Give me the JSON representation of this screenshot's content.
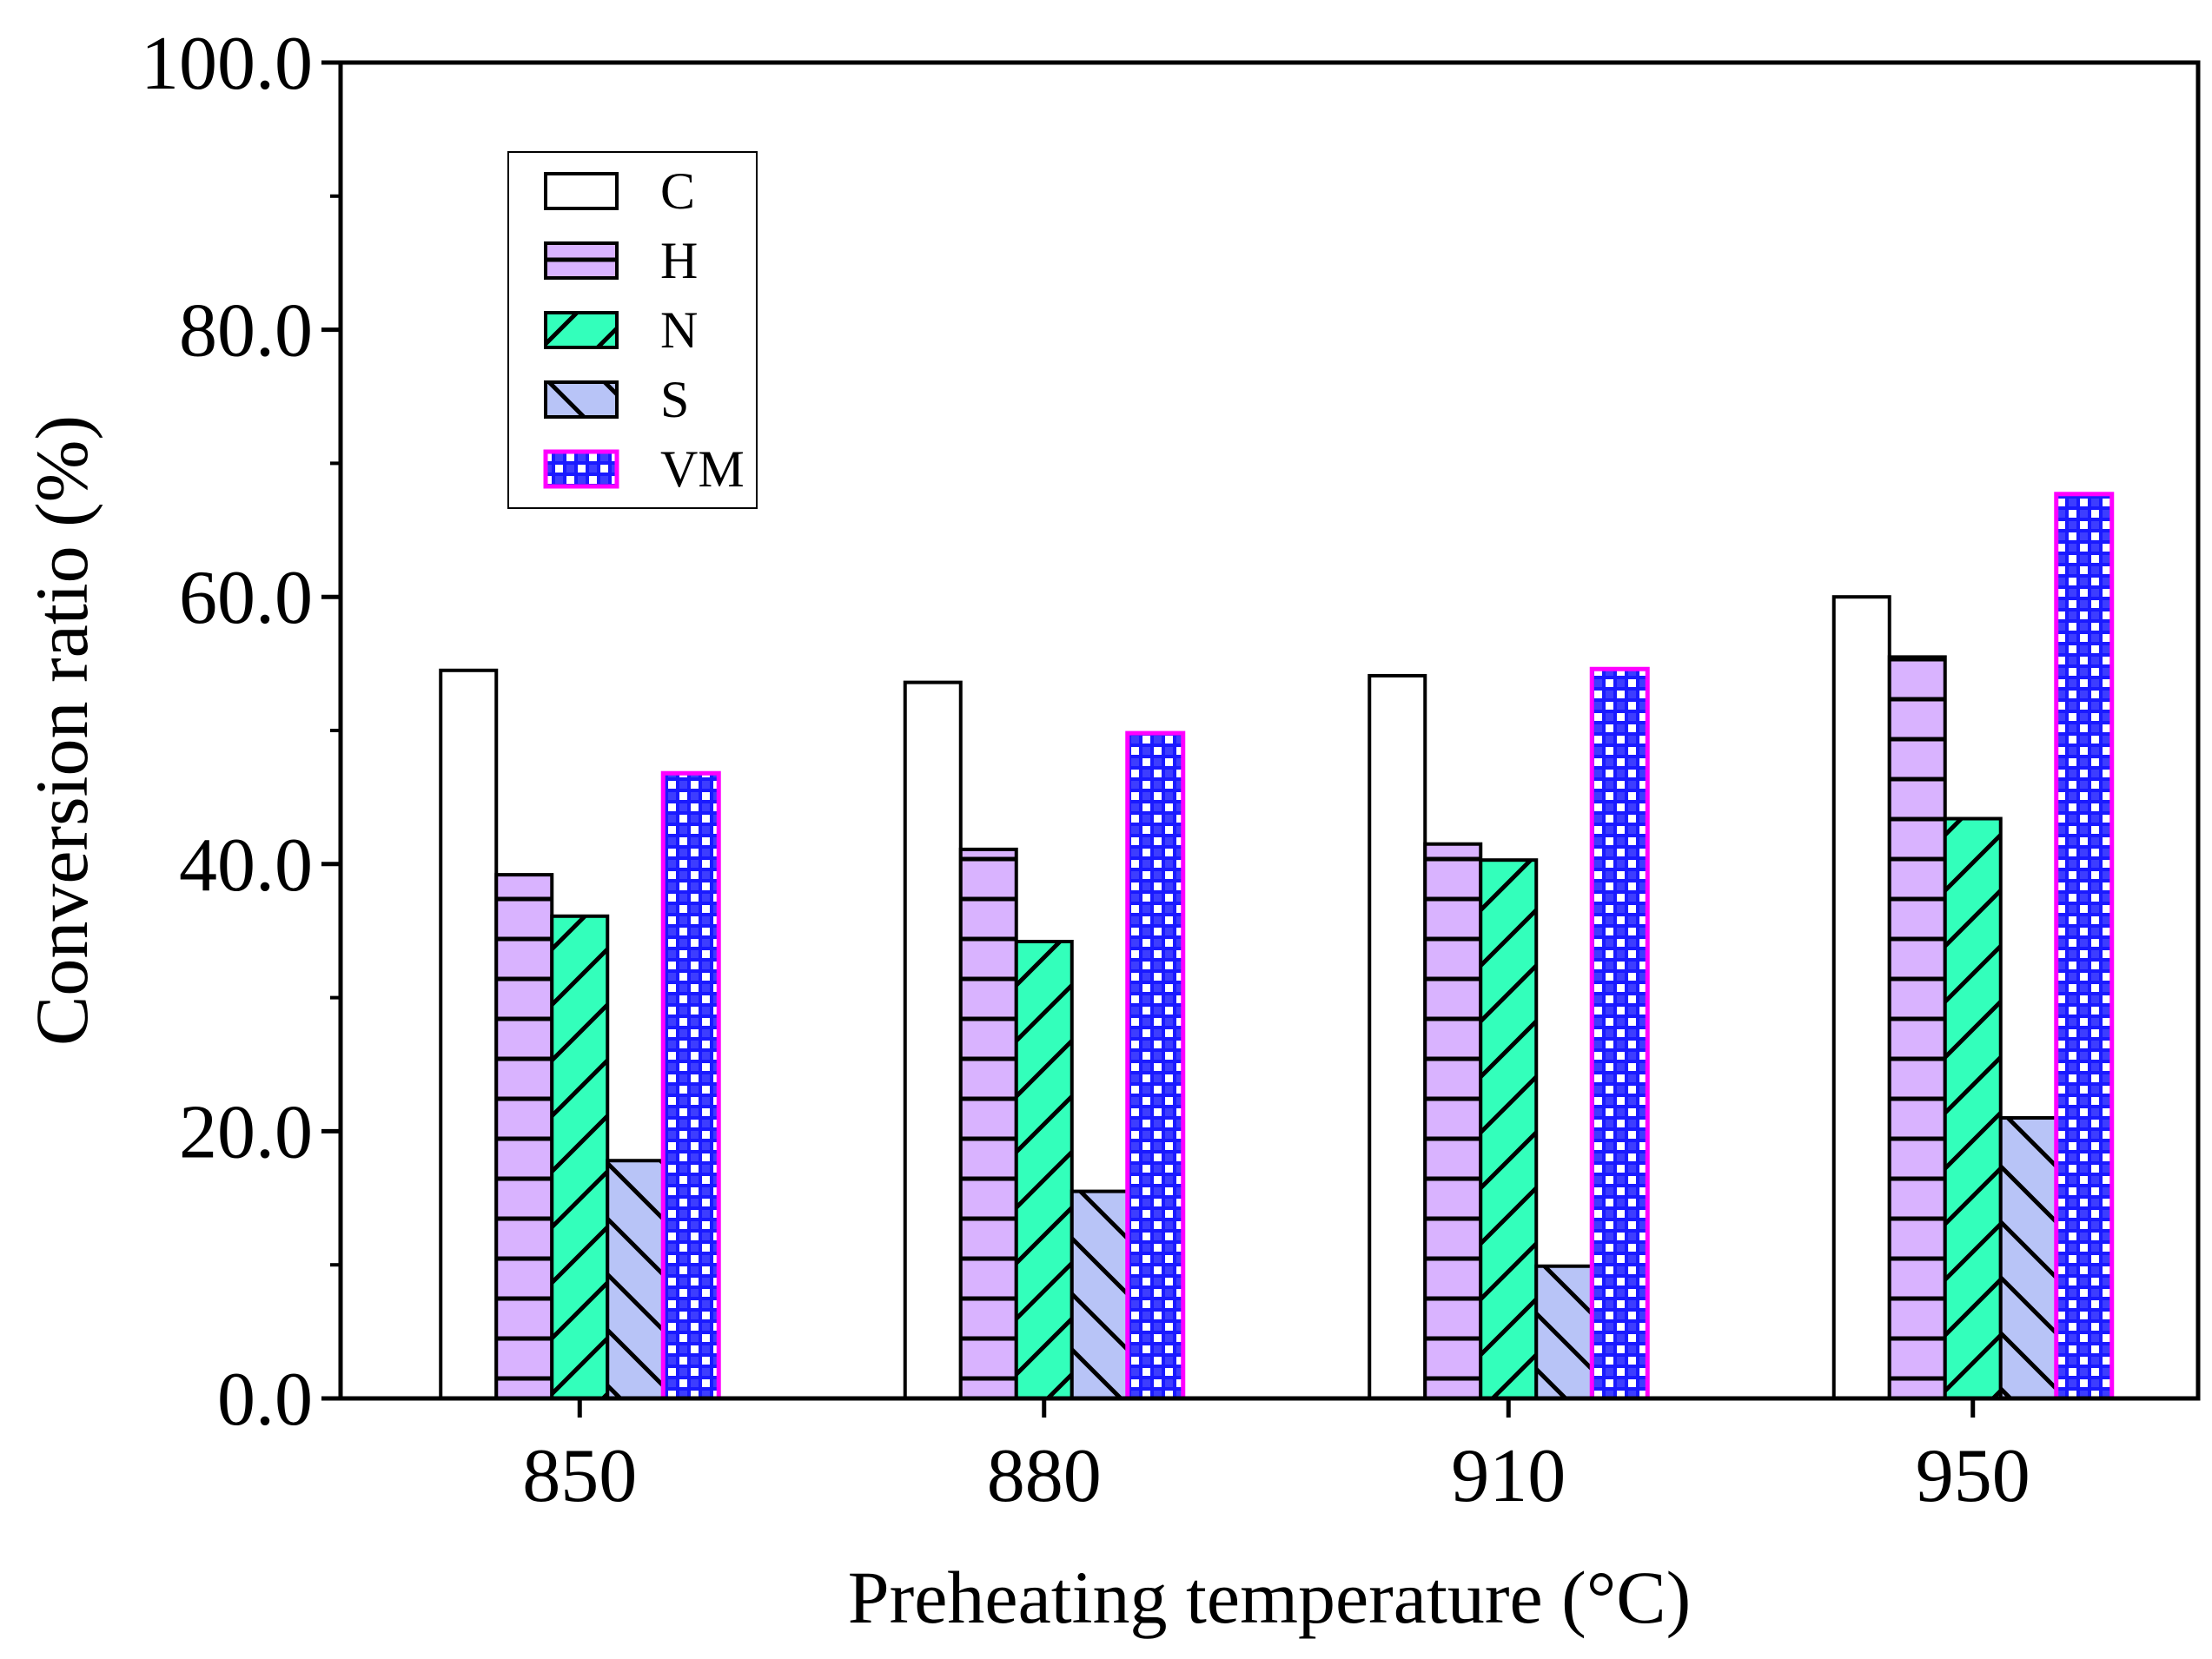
{
  "chart_data": {
    "type": "bar",
    "xlabel": "Preheating temperature (°C)",
    "ylabel": "Conversion ratio (%)",
    "ylim": [
      0,
      100
    ],
    "yticks": [
      "0.0",
      "20.0",
      "40.0",
      "60.0",
      "80.0",
      "100.0"
    ],
    "categories": [
      "850",
      "880",
      "910",
      "950"
    ],
    "legend_position": "top-left",
    "grid": false,
    "series": [
      {
        "name": "C",
        "values": [
          54.5,
          53.6,
          54.1,
          60.0
        ],
        "fill": "#ffffff",
        "stroke": "#000000",
        "pattern": "none"
      },
      {
        "name": "H",
        "values": [
          39.2,
          41.1,
          41.5,
          55.5
        ],
        "fill": "#d9b3ff",
        "stroke": "#000000",
        "pattern": "horizontal"
      },
      {
        "name": "N",
        "values": [
          36.1,
          34.2,
          40.3,
          43.4
        ],
        "fill": "#33ffbb",
        "stroke": "#000000",
        "pattern": "forward-diagonal"
      },
      {
        "name": "S",
        "values": [
          17.8,
          15.5,
          9.9,
          21.0
        ],
        "fill": "#b8c4f7",
        "stroke": "#000000",
        "pattern": "back-diagonal"
      },
      {
        "name": "VM",
        "values": [
          46.8,
          49.8,
          54.6,
          67.7
        ],
        "fill": "#1a1aff",
        "stroke": "#ff00ff",
        "pattern": "checker"
      }
    ]
  }
}
